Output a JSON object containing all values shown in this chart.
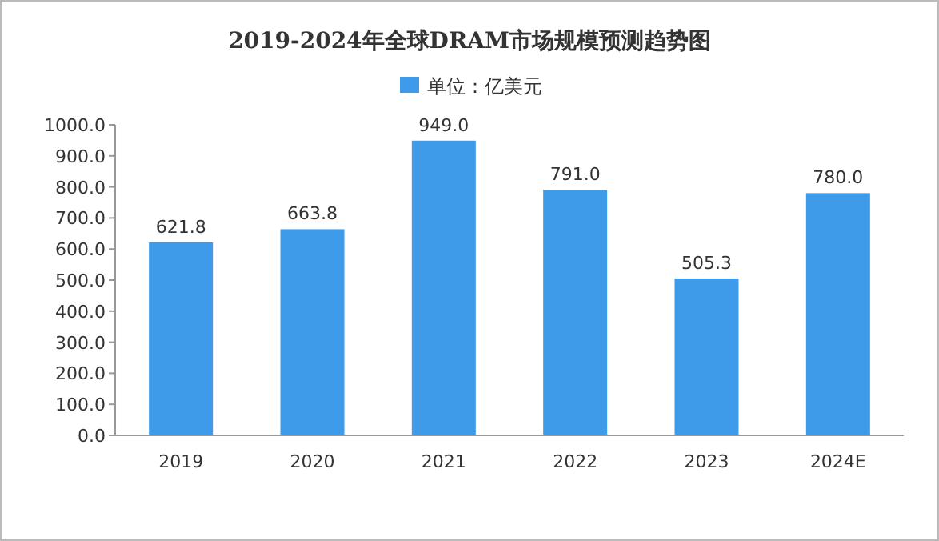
{
  "chart_data": {
    "type": "bar",
    "title": "2019-2024年全球DRAM市场规模预测趋势图",
    "categories": [
      "2019",
      "2020",
      "2021",
      "2022",
      "2023",
      "2024E"
    ],
    "series": [
      {
        "name": "单位：亿美元",
        "color": "#3d9be9",
        "values": [
          621.8,
          663.8,
          949.0,
          791.0,
          505.3,
          780.0
        ]
      }
    ],
    "ylim": [
      0,
      1000
    ],
    "yticks": [
      {
        "value": 0,
        "label": "0.0"
      },
      {
        "value": 100,
        "label": "100.0"
      },
      {
        "value": 200,
        "label": "200.0"
      },
      {
        "value": 300,
        "label": "300.0"
      },
      {
        "value": 400,
        "label": "400.0"
      },
      {
        "value": 500,
        "label": "500.0"
      },
      {
        "value": 600,
        "label": "600.0"
      },
      {
        "value": 700,
        "label": "700.0"
      },
      {
        "value": 800,
        "label": "800.0"
      },
      {
        "value": 900,
        "label": "900.0"
      },
      {
        "value": 1000,
        "label": "1000.0"
      }
    ],
    "value_labels": [
      "621.8",
      "663.8",
      "949.0",
      "791.0",
      "505.3",
      "780.0"
    ],
    "legend": "top",
    "grid": false
  }
}
